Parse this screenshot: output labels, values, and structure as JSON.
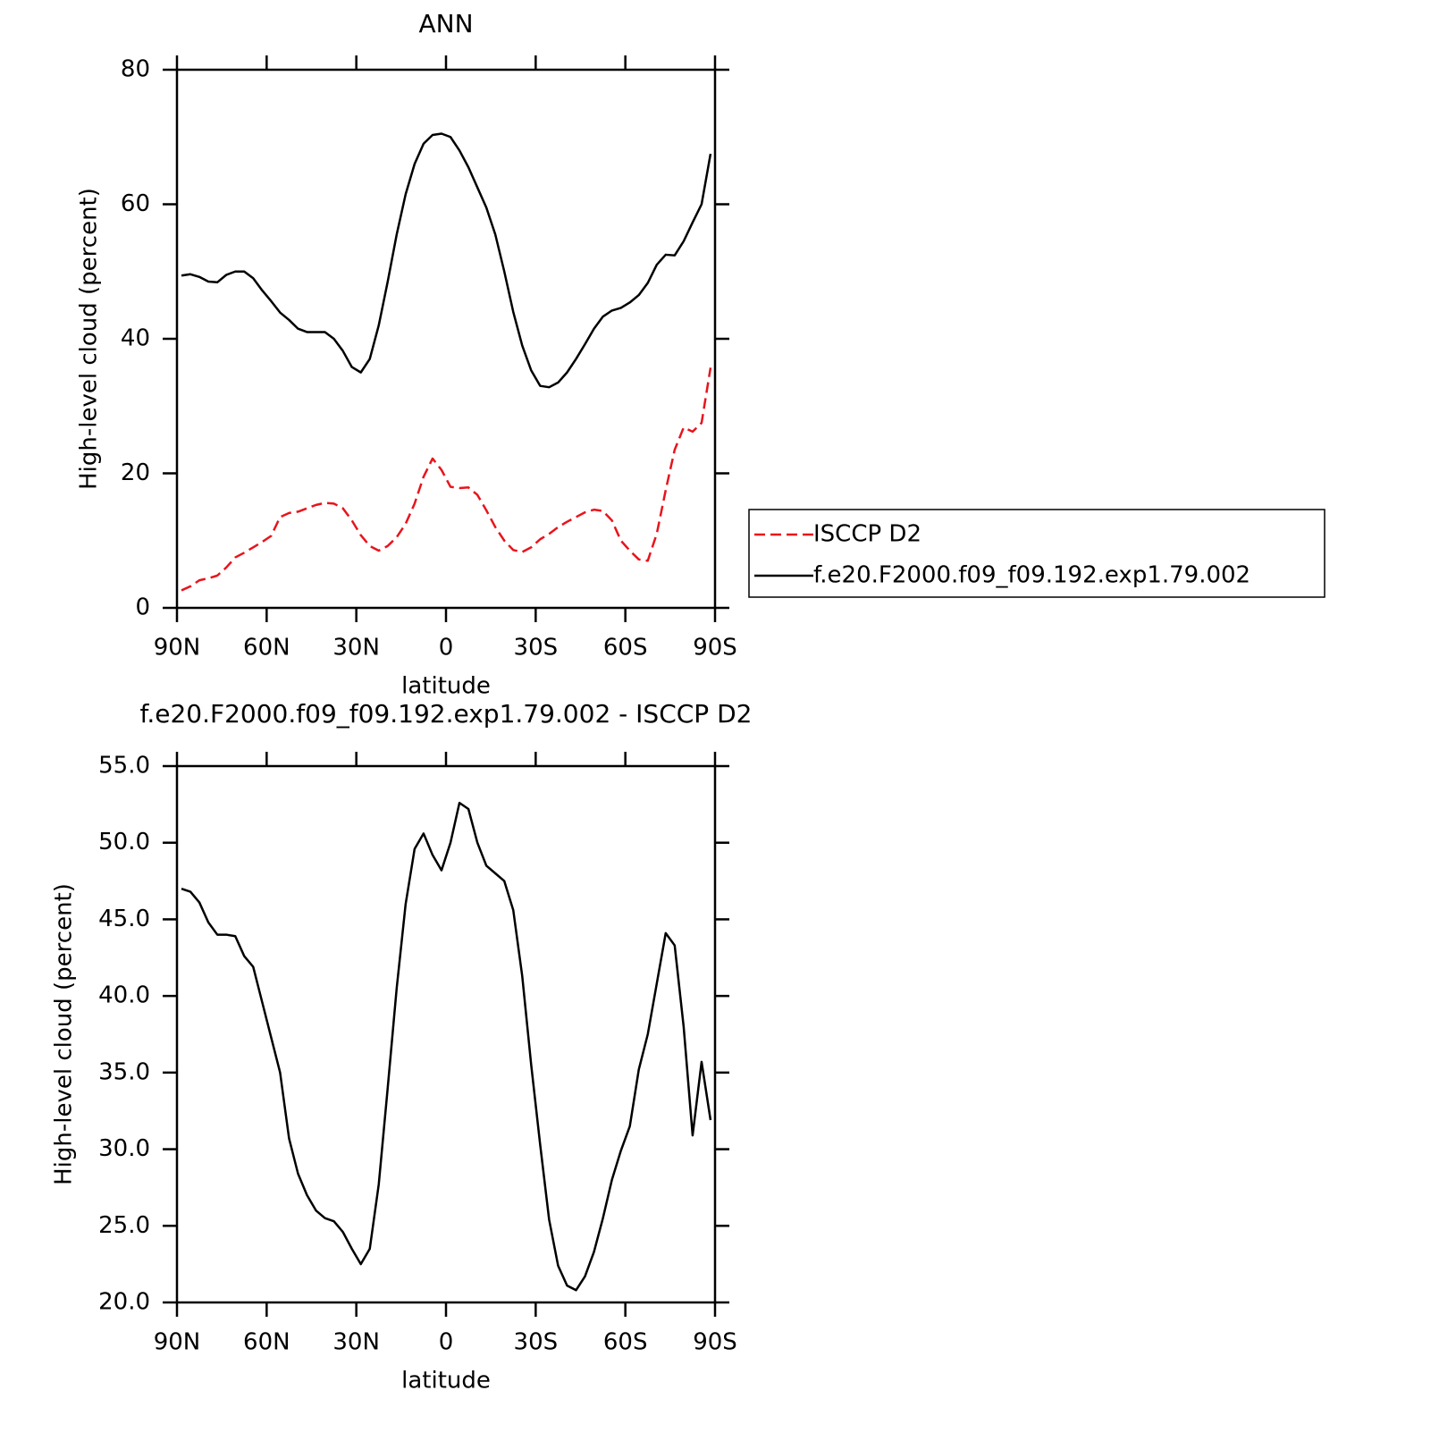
{
  "chart_data": [
    {
      "type": "line",
      "title": "ANN",
      "xlabel": "latitude",
      "ylabel": "High-level cloud (percent)",
      "x": [
        88.5,
        85.5,
        82.5,
        79.5,
        76.5,
        73.5,
        70.5,
        67.5,
        64.5,
        61.5,
        58.5,
        55.5,
        52.5,
        49.5,
        46.5,
        43.5,
        40.5,
        37.5,
        34.5,
        31.5,
        28.5,
        25.5,
        22.5,
        19.5,
        16.5,
        13.5,
        10.5,
        7.5,
        4.5,
        1.5,
        -1.5,
        -4.5,
        -7.5,
        -10.5,
        -13.5,
        -16.5,
        -19.5,
        -22.5,
        -25.5,
        -28.5,
        -31.5,
        -34.5,
        -37.5,
        -40.5,
        -43.5,
        -46.5,
        -49.5,
        -52.5,
        -55.5,
        -58.5,
        -61.5,
        -64.5,
        -67.5,
        -70.5,
        -73.5,
        -76.5,
        -79.5,
        -82.5,
        -85.5,
        -88.5
      ],
      "series": [
        {
          "name": "ISCCP D2",
          "color": "#e8141c",
          "dashed": true,
          "values": [
            2.6,
            3.2,
            4.1,
            4.4,
            4.8,
            6.0,
            7.5,
            8.2,
            9.0,
            9.8,
            10.7,
            13.5,
            14.1,
            14.3,
            14.8,
            15.3,
            15.6,
            15.5,
            14.8,
            13.0,
            10.8,
            9.2,
            8.5,
            9.2,
            10.5,
            12.5,
            15.5,
            19.5,
            22.2,
            20.5,
            18.0,
            17.8,
            17.9,
            16.8,
            14.5,
            12.0,
            10.0,
            8.6,
            8.3,
            9.0,
            10.2,
            11.0,
            12.0,
            12.8,
            13.5,
            14.2,
            14.6,
            14.4,
            13.0,
            10.0,
            8.5,
            7.2,
            7.0,
            11.0,
            17.5,
            23.5,
            26.8,
            26.2,
            27.5,
            35.7
          ]
        },
        {
          "name": "f.e20.F2000.f09_f09.192.exp1.79.002",
          "color": "#000000",
          "dashed": false,
          "values": [
            49.4,
            49.6,
            49.2,
            48.5,
            48.4,
            49.5,
            50.0,
            50.0,
            49.0,
            47.2,
            45.6,
            43.9,
            42.8,
            41.5,
            41.0,
            41.0,
            41.0,
            40.0,
            38.2,
            35.8,
            35.0,
            37.0,
            42.0,
            48.5,
            55.5,
            61.5,
            66.0,
            69.0,
            70.3,
            70.5,
            70.0,
            68.0,
            65.5,
            62.5,
            59.5,
            55.5,
            50.0,
            44.0,
            39.0,
            35.3,
            33.0,
            32.8,
            33.5,
            35.0,
            37.0,
            39.2,
            41.5,
            43.3,
            44.2,
            44.6,
            45.4,
            46.5,
            48.3,
            51.0,
            52.5,
            52.4,
            54.5,
            57.3,
            60.0,
            67.5
          ]
        }
      ],
      "xlim": [
        90,
        -90
      ],
      "xticks": [
        {
          "value": 90,
          "label": "90N"
        },
        {
          "value": 60,
          "label": "60N"
        },
        {
          "value": 30,
          "label": "30N"
        },
        0,
        {
          "value": -30,
          "label": "30S"
        },
        {
          "value": -60,
          "label": "60S"
        },
        {
          "value": -90,
          "label": "90S"
        }
      ],
      "ylim": [
        0,
        80
      ],
      "yticks": [
        0,
        20,
        40,
        60,
        80
      ],
      "legend": "right"
    },
    {
      "type": "line",
      "title": "f.e20.F2000.f09_f09.192.exp1.79.002 - ISCCP D2",
      "xlabel": "latitude",
      "ylabel": "High-level cloud (percent)",
      "x": [
        88.5,
        85.5,
        82.5,
        79.5,
        76.5,
        73.5,
        70.5,
        67.5,
        64.5,
        61.5,
        58.5,
        55.5,
        52.5,
        49.5,
        46.5,
        43.5,
        40.5,
        37.5,
        34.5,
        31.5,
        28.5,
        25.5,
        22.5,
        19.5,
        16.5,
        13.5,
        10.5,
        7.5,
        4.5,
        1.5,
        -1.5,
        -4.5,
        -7.5,
        -10.5,
        -13.5,
        -16.5,
        -19.5,
        -22.5,
        -25.5,
        -28.5,
        -31.5,
        -34.5,
        -37.5,
        -40.5,
        -43.5,
        -46.5,
        -49.5,
        -52.5,
        -55.5,
        -58.5,
        -61.5,
        -64.5,
        -67.5,
        -70.5,
        -73.5,
        -76.5,
        -79.5,
        -82.5,
        -85.5,
        -88.5
      ],
      "color": "#000000",
      "values": [
        47.0,
        46.8,
        46.1,
        44.8,
        44.0,
        44.0,
        43.9,
        42.6,
        41.9,
        39.6,
        37.3,
        35.0,
        30.7,
        28.4,
        27.0,
        26.0,
        25.5,
        25.3,
        24.6,
        23.5,
        22.5,
        23.5,
        27.7,
        34.0,
        40.5,
        46.0,
        49.6,
        50.6,
        49.2,
        48.2,
        50.0,
        52.6,
        52.2,
        50.0,
        48.5,
        48.0,
        47.5,
        45.6,
        41.3,
        35.5,
        30.3,
        25.4,
        22.4,
        21.1,
        20.8,
        21.7,
        23.3,
        25.5,
        28.0,
        29.9,
        31.5,
        35.2,
        37.5,
        40.8,
        44.1,
        43.3,
        38.0,
        30.9,
        35.7,
        31.9
      ],
      "xlim": [
        90,
        -90
      ],
      "xticks": [
        {
          "value": 90,
          "label": "90N"
        },
        {
          "value": 60,
          "label": "60N"
        },
        {
          "value": 30,
          "label": "30N"
        },
        0,
        {
          "value": -30,
          "label": "30S"
        },
        {
          "value": -60,
          "label": "60S"
        },
        {
          "value": -90,
          "label": "90S"
        }
      ],
      "ylim": [
        20,
        55
      ],
      "yticks": [
        {
          "value": 20,
          "label": "20.0"
        },
        {
          "value": 25,
          "label": "25.0"
        },
        {
          "value": 30,
          "label": "30.0"
        },
        {
          "value": 35,
          "label": "35.0"
        },
        {
          "value": 40,
          "label": "40.0"
        },
        {
          "value": 45,
          "label": "45.0"
        },
        {
          "value": 50,
          "label": "50.0"
        },
        {
          "value": 55,
          "label": "55.0"
        }
      ]
    }
  ]
}
